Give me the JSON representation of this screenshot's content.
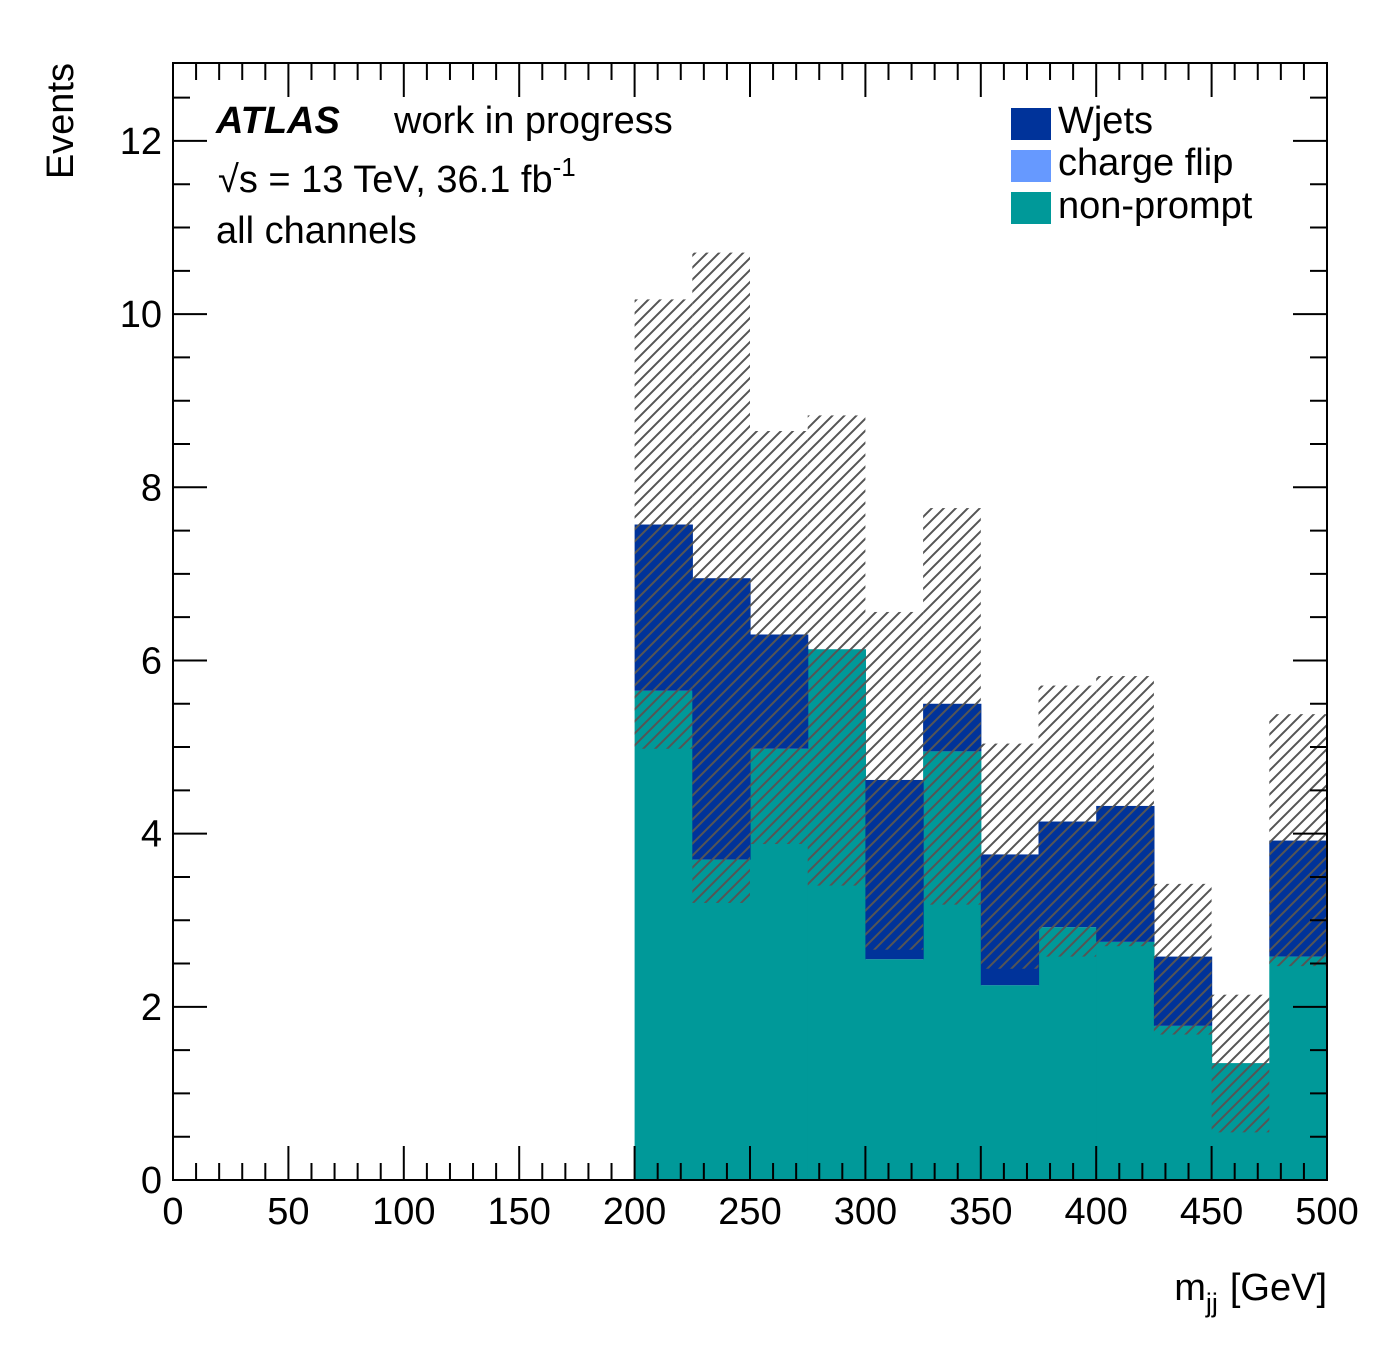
{
  "chart_data": {
    "type": "bar",
    "stacked": true,
    "title": "",
    "xlabel_main": "m",
    "xlabel_sub": "jj",
    "xlabel_unit": "[GeV]",
    "ylabel": "Events",
    "xlim": [
      0,
      500
    ],
    "ylim": [
      0,
      12.9
    ],
    "x_ticks": [
      0,
      50,
      100,
      150,
      200,
      250,
      300,
      350,
      400,
      450,
      500
    ],
    "y_ticks": [
      0,
      2,
      4,
      6,
      8,
      10,
      12
    ],
    "grid": false,
    "legend_position": "top-right",
    "bin_edges": [
      200,
      225,
      250,
      275,
      300,
      325,
      350,
      375,
      400,
      425,
      450,
      475,
      500
    ],
    "series": [
      {
        "name": "non-prompt",
        "color": "#009999",
        "values": [
          5.65,
          3.7,
          4.98,
          6.13,
          2.55,
          4.95,
          2.25,
          2.92,
          2.75,
          1.78,
          1.35,
          2.58
        ]
      },
      {
        "name": "charge flip",
        "color": "#6699ff",
        "values": [
          0,
          0,
          0,
          0,
          0,
          0,
          0,
          0,
          0,
          0,
          0,
          0
        ]
      },
      {
        "name": "Wjets",
        "color": "#00339a",
        "values": [
          1.92,
          3.25,
          1.32,
          0.0,
          2.07,
          0.55,
          1.51,
          1.22,
          1.57,
          0.8,
          0.0,
          1.34
        ]
      }
    ],
    "uncertainty_band": {
      "low": [
        4.98,
        3.2,
        3.88,
        3.4,
        2.66,
        3.18,
        2.44,
        2.58,
        2.7,
        1.68,
        0.55,
        2.47
      ],
      "high": [
        10.17,
        10.71,
        8.65,
        8.83,
        6.56,
        7.76,
        5.04,
        5.71,
        5.82,
        3.42,
        2.14,
        5.38
      ]
    },
    "annotations": {
      "experiment": "ATLAS",
      "status": "work in progress",
      "energy": "√s = 13 TeV, 36.1 fb",
      "energy_sup": "-1",
      "channel": "all channels"
    }
  }
}
